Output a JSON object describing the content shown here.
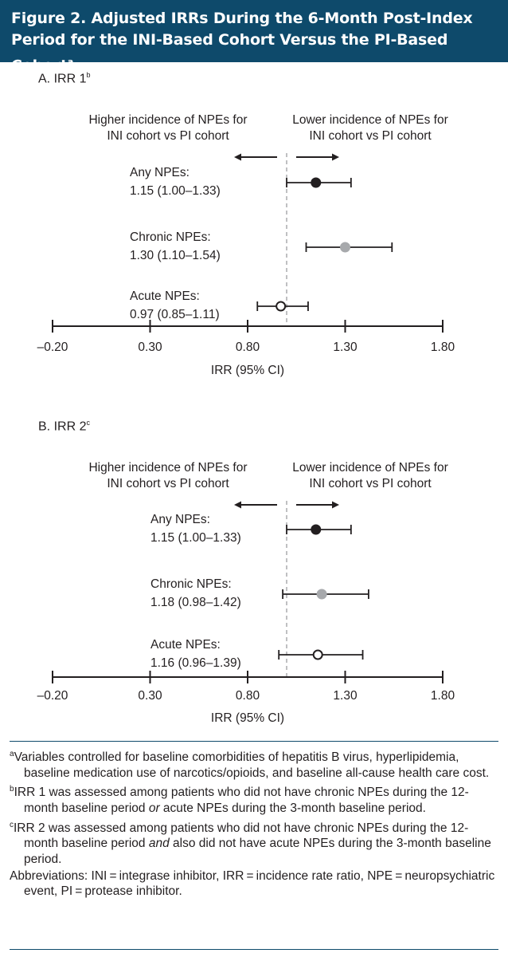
{
  "figure": {
    "title_line1": "Figure 2. Adjusted IRRs During the 6-Month Post-Index",
    "title_line2": "Period for the INI-Based Cohort Versus the PI-Based Cohort",
    "title_marker": "a"
  },
  "chart_data": [
    {
      "type": "scatter",
      "panel_label": "A. IRR 1",
      "panel_marker": "b",
      "left_annotation": [
        "Higher incidence of NPEs for",
        "INI cohort vs PI cohort"
      ],
      "right_annotation": [
        "Lower incidence of NPEs for",
        "INI cohort vs PI cohort"
      ],
      "xlabel": "IRR (95% CI)",
      "xlim": [
        -0.2,
        1.8
      ],
      "xticks": [
        -0.2,
        0.3,
        0.8,
        1.3,
        1.8
      ],
      "xtick_labels": [
        "–0.20",
        "0.30",
        "0.80",
        "1.30",
        "1.80"
      ],
      "reference_line": 1.0,
      "series": [
        {
          "name": "Any NPEs:",
          "label": "1.15 (1.00–1.33)",
          "irr": 1.15,
          "ci": [
            1.0,
            1.33
          ],
          "marker": "filled-black"
        },
        {
          "name": "Chronic NPEs:",
          "label": "1.30 (1.10–1.54)",
          "irr": 1.3,
          "ci": [
            1.1,
            1.54
          ],
          "marker": "filled-gray"
        },
        {
          "name": "Acute NPEs:",
          "label": "0.97 (0.85–1.11)",
          "irr": 0.97,
          "ci": [
            0.85,
            1.11
          ],
          "marker": "open"
        }
      ]
    },
    {
      "type": "scatter",
      "panel_label": "B. IRR 2",
      "panel_marker": "c",
      "left_annotation": [
        "Higher incidence of NPEs for",
        "INI cohort vs PI cohort"
      ],
      "right_annotation": [
        "Lower incidence of NPEs for",
        "INI cohort vs PI cohort"
      ],
      "xlabel": "IRR (95% CI)",
      "xlim": [
        -0.2,
        1.8
      ],
      "xticks": [
        -0.2,
        0.3,
        0.8,
        1.3,
        1.8
      ],
      "xtick_labels": [
        "–0.20",
        "0.30",
        "0.80",
        "1.30",
        "1.80"
      ],
      "reference_line": 1.0,
      "series": [
        {
          "name": "Any NPEs:",
          "label": "1.15 (1.00–1.33)",
          "irr": 1.15,
          "ci": [
            1.0,
            1.33
          ],
          "marker": "filled-black"
        },
        {
          "name": "Chronic NPEs:",
          "label": "1.18 (0.98–1.42)",
          "irr": 1.18,
          "ci": [
            0.98,
            1.42
          ],
          "marker": "filled-gray"
        },
        {
          "name": "Acute NPEs:",
          "label": "1.16 (0.96–1.39)",
          "irr": 1.16,
          "ci": [
            0.96,
            1.39
          ],
          "marker": "open"
        }
      ]
    }
  ],
  "footnotes": {
    "a_marker": "a",
    "a_text": "Variables controlled for baseline comorbidities of hepatitis B virus, hyperlipidemia, baseline medication use of narcotics/opioids, and baseline all-cause health care cost.",
    "b_marker": "b",
    "b_text_1": "IRR 1 was assessed among patients who did not have chronic NPEs during the 12-month baseline period ",
    "b_em": "or",
    "b_text_2": " acute NPEs during the 3-month baseline period.",
    "c_marker": "c",
    "c_text_1": "IRR 2 was assessed among patients who did not have chronic NPEs during the 12-month baseline period ",
    "c_em": "and",
    "c_text_2": " also did not have acute NPEs during the 3-month baseline period.",
    "abbreviations": "Abbreviations: INI = integrase inhibitor, IRR = incidence rate ratio, NPE = neuropsychiatric event, PI = protease inhibitor."
  },
  "colors": {
    "banner": "#0e4a6b",
    "text": "#231f20",
    "marker_black": "#231f20",
    "marker_gray": "#a7a9ac",
    "reference_line": "#9d9fa2"
  }
}
